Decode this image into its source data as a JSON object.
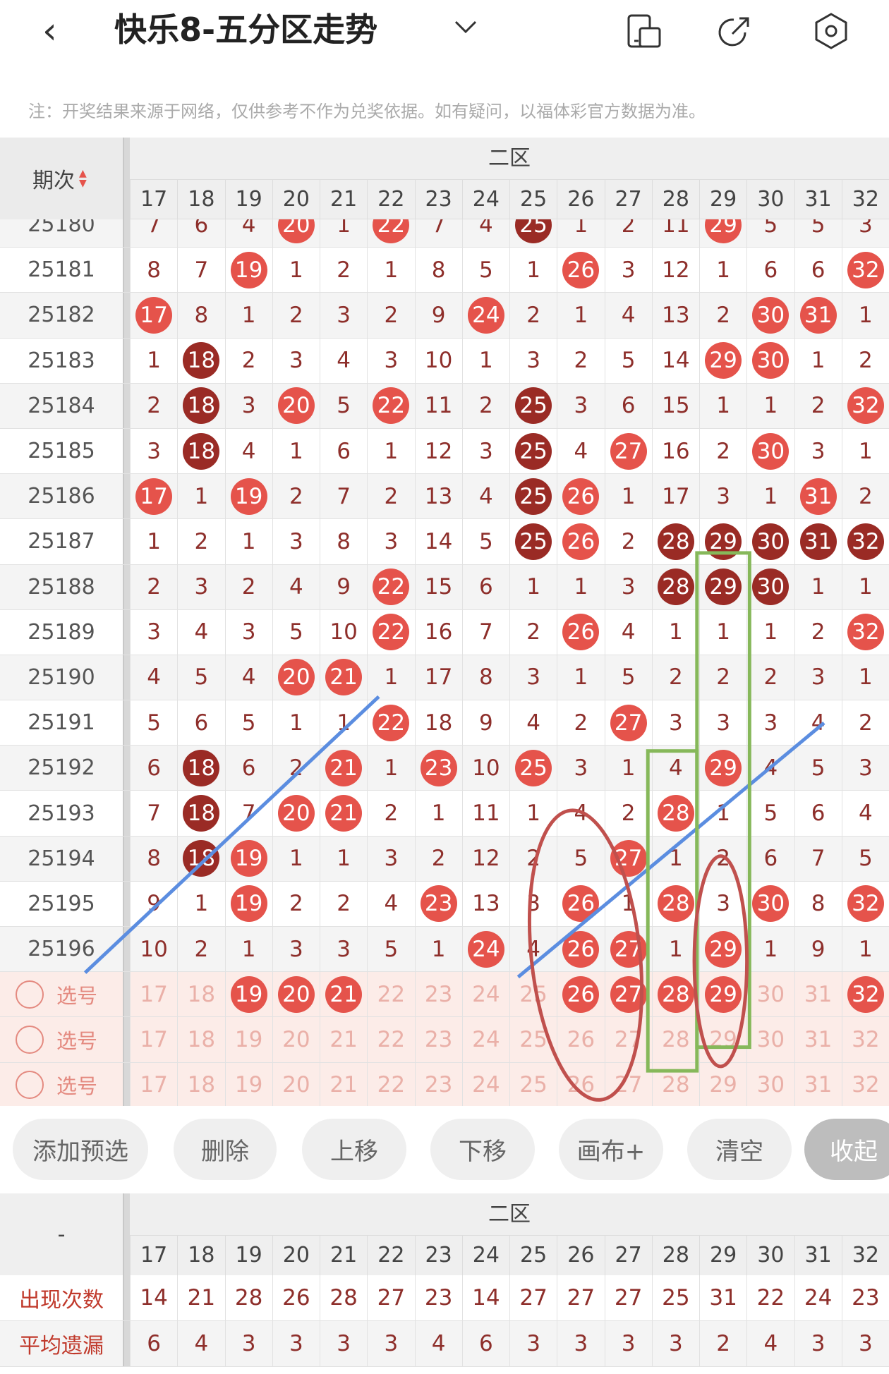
{
  "header": {
    "back_icon": "chevron-left",
    "title": "快乐8-五分区走势",
    "dropdown_icon": "chevron-down",
    "icons": [
      "device-icon",
      "share-icon",
      "settings-icon"
    ]
  },
  "note": "注：开奖结果来源于网络，仅供参考不作为兑奖依据。如有疑问，以福体彩官方数据为准。",
  "table": {
    "issue_header": "期次",
    "zone": "二区",
    "columns": [
      "17",
      "18",
      "19",
      "20",
      "21",
      "22",
      "23",
      "24",
      "25",
      "26",
      "27",
      "28",
      "29",
      "30",
      "31",
      "32"
    ],
    "rows": [
      {
        "issue": "25180",
        "values": [
          "7",
          "6",
          "4",
          "20",
          "1",
          "22",
          "7",
          "4",
          "25",
          "1",
          "2",
          "11",
          "29",
          "5",
          "5",
          "3"
        ],
        "dark": [
          "25"
        ]
      },
      {
        "issue": "25181",
        "values": [
          "8",
          "7",
          "19",
          "1",
          "2",
          "1",
          "8",
          "5",
          "1",
          "26",
          "3",
          "12",
          "1",
          "6",
          "6",
          "32"
        ],
        "dark": []
      },
      {
        "issue": "25182",
        "values": [
          "17",
          "8",
          "1",
          "2",
          "3",
          "2",
          "9",
          "24",
          "2",
          "1",
          "4",
          "13",
          "2",
          "30",
          "31",
          "1"
        ],
        "dark": []
      },
      {
        "issue": "25183",
        "values": [
          "1",
          "18",
          "2",
          "3",
          "4",
          "3",
          "10",
          "1",
          "3",
          "2",
          "5",
          "14",
          "29",
          "30",
          "1",
          "2"
        ],
        "dark": [
          "18"
        ]
      },
      {
        "issue": "25184",
        "values": [
          "2",
          "18",
          "3",
          "20",
          "5",
          "22",
          "11",
          "2",
          "25",
          "3",
          "6",
          "15",
          "1",
          "1",
          "2",
          "32"
        ],
        "dark": [
          "18",
          "25"
        ]
      },
      {
        "issue": "25185",
        "values": [
          "3",
          "18",
          "4",
          "1",
          "6",
          "1",
          "12",
          "3",
          "25",
          "4",
          "27",
          "16",
          "2",
          "30",
          "3",
          "1"
        ],
        "dark": [
          "18",
          "25"
        ]
      },
      {
        "issue": "25186",
        "values": [
          "17",
          "1",
          "19",
          "2",
          "7",
          "2",
          "13",
          "4",
          "25",
          "26",
          "1",
          "17",
          "3",
          "1",
          "31",
          "2"
        ],
        "dark": [
          "25"
        ]
      },
      {
        "issue": "25187",
        "values": [
          "1",
          "2",
          "1",
          "3",
          "8",
          "3",
          "14",
          "5",
          "25",
          "26",
          "2",
          "28",
          "29",
          "30",
          "31",
          "32"
        ],
        "dark": [
          "25",
          "28",
          "29",
          "30",
          "31",
          "32"
        ]
      },
      {
        "issue": "25188",
        "values": [
          "2",
          "3",
          "2",
          "4",
          "9",
          "22",
          "15",
          "6",
          "1",
          "1",
          "3",
          "28",
          "29",
          "30",
          "1",
          "1"
        ],
        "dark": [
          "28",
          "29",
          "30"
        ]
      },
      {
        "issue": "25189",
        "values": [
          "3",
          "4",
          "3",
          "5",
          "10",
          "22",
          "16",
          "7",
          "2",
          "26",
          "4",
          "1",
          "1",
          "1",
          "2",
          "32"
        ],
        "dark": []
      },
      {
        "issue": "25190",
        "values": [
          "4",
          "5",
          "4",
          "20",
          "21",
          "1",
          "17",
          "8",
          "3",
          "1",
          "5",
          "2",
          "2",
          "2",
          "3",
          "1"
        ],
        "dark": []
      },
      {
        "issue": "25191",
        "values": [
          "5",
          "6",
          "5",
          "1",
          "1",
          "22",
          "18",
          "9",
          "4",
          "2",
          "27",
          "3",
          "3",
          "3",
          "4",
          "2"
        ],
        "dark": []
      },
      {
        "issue": "25192",
        "values": [
          "6",
          "18",
          "6",
          "2",
          "21",
          "1",
          "23",
          "10",
          "25",
          "3",
          "1",
          "4",
          "29",
          "4",
          "5",
          "3"
        ],
        "dark": [
          "18"
        ]
      },
      {
        "issue": "25193",
        "values": [
          "7",
          "18",
          "7",
          "20",
          "21",
          "2",
          "1",
          "11",
          "1",
          "4",
          "2",
          "28",
          "1",
          "5",
          "6",
          "4"
        ],
        "dark": [
          "18"
        ]
      },
      {
        "issue": "25194",
        "values": [
          "8",
          "18",
          "19",
          "1",
          "1",
          "3",
          "2",
          "12",
          "2",
          "5",
          "27",
          "1",
          "2",
          "6",
          "7",
          "5"
        ],
        "dark": [
          "18"
        ]
      },
      {
        "issue": "25195",
        "values": [
          "9",
          "1",
          "19",
          "2",
          "2",
          "4",
          "23",
          "13",
          "3",
          "26",
          "1",
          "28",
          "3",
          "30",
          "8",
          "32"
        ],
        "dark": []
      },
      {
        "issue": "25196",
        "values": [
          "10",
          "2",
          "1",
          "3",
          "3",
          "5",
          "1",
          "24",
          "4",
          "26",
          "27",
          "1",
          "29",
          "1",
          "9",
          "1"
        ],
        "dark": []
      }
    ],
    "pick_rows": [
      {
        "label": "选号",
        "selected": [
          "19",
          "20",
          "21",
          "26",
          "27",
          "28",
          "29",
          "32"
        ]
      },
      {
        "label": "选号",
        "selected": []
      },
      {
        "label": "选号",
        "selected": []
      }
    ]
  },
  "buttons": [
    "添加预选",
    "删除",
    "上移",
    "下移",
    "画布+",
    "清空",
    "收起"
  ],
  "stats": {
    "corner": "-",
    "zone": "二区",
    "rows": [
      {
        "label": "出现次数",
        "values": [
          "14",
          "21",
          "28",
          "26",
          "28",
          "27",
          "23",
          "14",
          "27",
          "27",
          "27",
          "25",
          "31",
          "22",
          "24",
          "23"
        ]
      },
      {
        "label": "平均遗漏",
        "values": [
          "6",
          "4",
          "3",
          "3",
          "3",
          "3",
          "4",
          "6",
          "3",
          "3",
          "3",
          "3",
          "2",
          "4",
          "3",
          "3"
        ]
      }
    ]
  },
  "colors": {
    "hit": "#e5534b",
    "hit_repeat": "#9a2b25",
    "miss_text": "#8e2f2b",
    "annotation_line": "#5b8de0",
    "annotation_box": "#86b85a",
    "annotation_ellipse": "#c0504d"
  }
}
